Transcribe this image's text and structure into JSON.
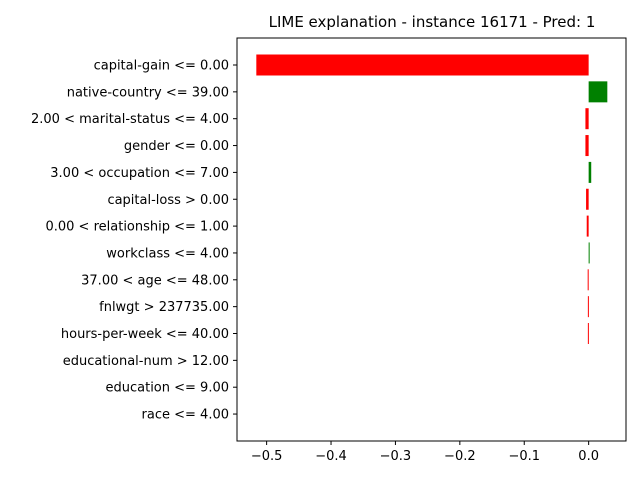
{
  "chart_data": {
    "type": "bar",
    "orientation": "horizontal",
    "title": "LIME explanation - instance 16171 - Pred: 1",
    "xlabel": "",
    "ylabel": "",
    "xlim": [
      -0.546,
      0.058
    ],
    "xticks": [
      -0.5,
      -0.4,
      -0.3,
      -0.2,
      -0.1,
      0.0
    ],
    "xtick_labels": [
      "−0.5",
      "−0.4",
      "−0.3",
      "−0.2",
      "−0.1",
      "0.0"
    ],
    "grid": false,
    "legend": false,
    "categories": [
      "capital-gain <= 0.00",
      "native-country <= 39.00",
      "2.00 < marital-status <= 4.00",
      "gender <= 0.00",
      "3.00 < occupation <= 7.00",
      "capital-loss > 0.00",
      "0.00 < relationship <= 1.00",
      "workclass <= 4.00",
      "37.00 < age <= 48.00",
      "fnlwgt > 237735.00",
      "hours-per-week <= 40.00",
      "educational-num > 12.00",
      "education <= 9.00",
      "race <= 4.00"
    ],
    "values": [
      -0.516,
      0.029,
      -0.005,
      -0.005,
      0.004,
      -0.004,
      -0.003,
      0.0015,
      -0.0015,
      -0.0012,
      -0.0012,
      0.0,
      0.0,
      0.0
    ],
    "colors": {
      "positive": "#008000",
      "negative": "#ff0000"
    }
  }
}
